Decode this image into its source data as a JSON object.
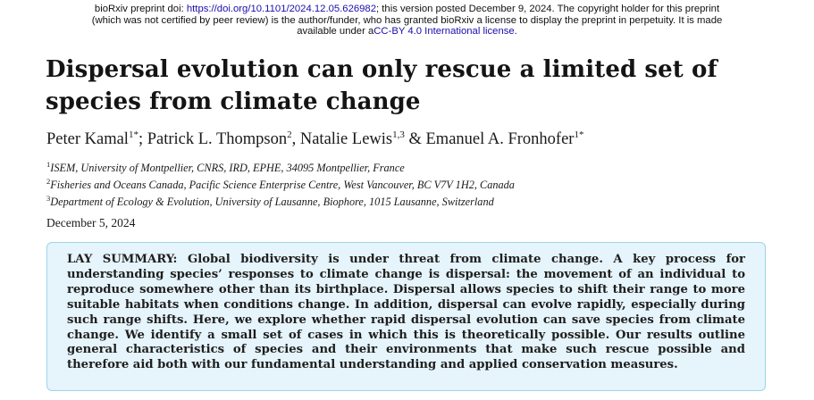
{
  "banner": {
    "doi_prefix": "bioRxiv preprint doi: ",
    "doi_link": "https://doi.org/10.1101/2024.12.05.626982",
    "line1_rest": "; this version posted December 9, 2024. The copyright holder for this preprint",
    "line2": "(which was not certified by peer review) is the author/funder, who has granted bioRxiv a license to display the preprint in perpetuity. It is made",
    "line3_prefix": "available under a",
    "license_link": "CC-BY 4.0 International license",
    "line3_suffix": "."
  },
  "paper": {
    "title_line1": "Dispersal evolution can only rescue a limited set of",
    "title_line2": "species from climate change",
    "authors": [
      {
        "name": "Peter Kamal",
        "sup": "1*",
        "sep": "; "
      },
      {
        "name": "Patrick L. Thompson",
        "sup": "2",
        "sep": ", "
      },
      {
        "name": "Natalie Lewis",
        "sup": "1,3",
        "sep": " & "
      },
      {
        "name": "Emanuel A. Fronhofer",
        "sup": "1*",
        "sep": ""
      }
    ],
    "affiliations": [
      {
        "sup": "1",
        "text": "ISEM, University of Montpellier, CNRS, IRD, EPHE, 34095 Montpellier, France"
      },
      {
        "sup": "2",
        "text": "Fisheries and Oceans Canada, Pacific Science Enterprise Centre, West Vancouver, BC V7V 1H2, Canada"
      },
      {
        "sup": "3",
        "text": "Department of Ecology & Evolution, University of Lausanne, Biophore, 1015 Lausanne, Switzerland"
      }
    ],
    "date": "December 5, 2024",
    "lay_summary": {
      "label": "LAY SUMMARY:",
      "text": "Global biodiversity is under threat from climate change. A key process for understanding species’ responses to climate change is dispersal: the movement of an individual to reproduce somewhere other than its birthplace. Dispersal allows species to shift their range to more suitable habitats when conditions change. In addition, dispersal can evolve rapidly, especially during such range shifts. Here, we explore whether rapid dispersal evolution can save species from climate change. We identify a small set of cases in which this is theoretically possible. Our results outline general characteristics of species and their environments that make such rescue possible and therefore aid both with our fundamental understanding and applied conservation measures."
    }
  }
}
